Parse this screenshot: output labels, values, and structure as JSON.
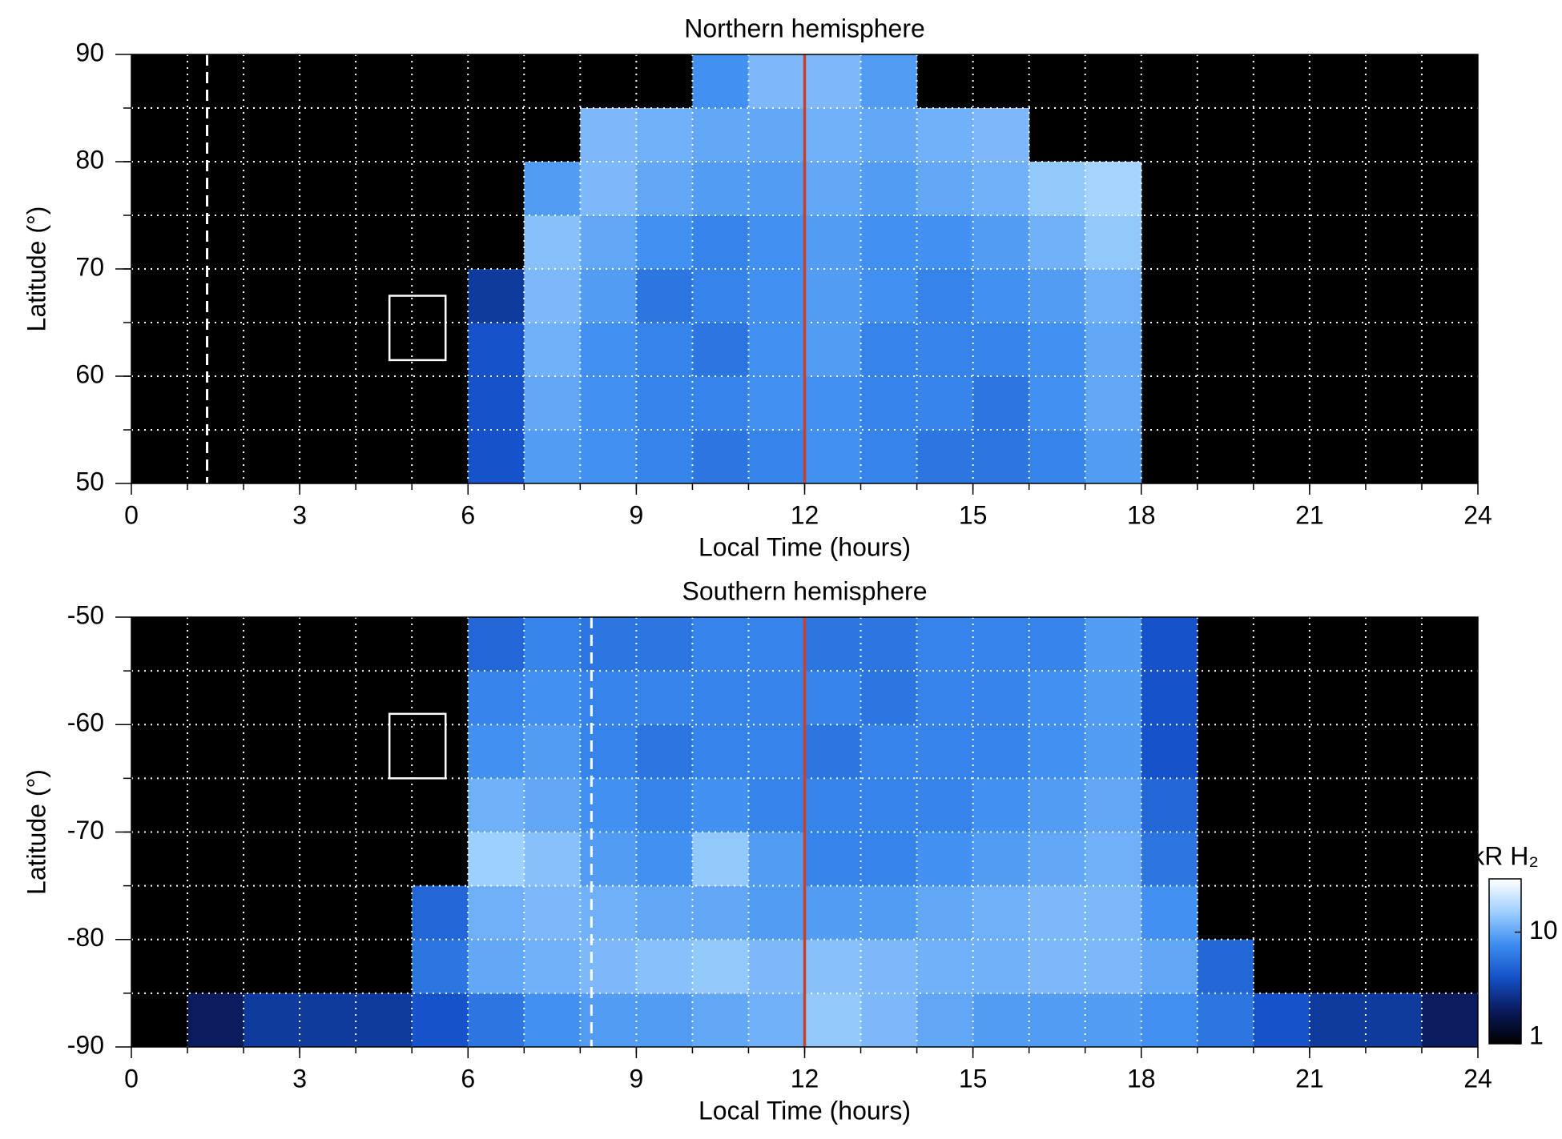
{
  "chart_data": [
    {
      "type": "heatmap",
      "title": "Northern hemisphere",
      "xlabel": "Local Time (hours)",
      "ylabel": "Latitude (°)",
      "x_edges": [
        0,
        1,
        2,
        3,
        4,
        5,
        6,
        7,
        8,
        9,
        10,
        11,
        12,
        13,
        14,
        15,
        16,
        17,
        18,
        19,
        20,
        21,
        22,
        23,
        24
      ],
      "y_edges": [
        50,
        55,
        60,
        65,
        70,
        75,
        80,
        85,
        90
      ],
      "values": [
        [
          null,
          null,
          null,
          null,
          null,
          null,
          4,
          9,
          8,
          7,
          6,
          7,
          8,
          7,
          6,
          6,
          7,
          9,
          null,
          null,
          null,
          null,
          null,
          null
        ],
        [
          null,
          null,
          null,
          null,
          null,
          null,
          4,
          10,
          8,
          7,
          7,
          8,
          8,
          7,
          7,
          6,
          8,
          10,
          null,
          null,
          null,
          null,
          null,
          null
        ],
        [
          null,
          null,
          null,
          null,
          null,
          null,
          4,
          11,
          8,
          7,
          6,
          8,
          9,
          7,
          7,
          7,
          8,
          10,
          null,
          null,
          null,
          null,
          null,
          null
        ],
        [
          null,
          null,
          null,
          null,
          null,
          null,
          3,
          12,
          9,
          6,
          7,
          8,
          9,
          8,
          7,
          8,
          9,
          11,
          null,
          null,
          null,
          null,
          null,
          null
        ],
        [
          null,
          null,
          null,
          null,
          null,
          null,
          null,
          13,
          10,
          8,
          7,
          8,
          9,
          8,
          8,
          9,
          11,
          14,
          null,
          null,
          null,
          null,
          null,
          null
        ],
        [
          null,
          null,
          null,
          null,
          null,
          null,
          null,
          9,
          12,
          10,
          9,
          9,
          10,
          9,
          10,
          11,
          14,
          16,
          null,
          null,
          null,
          null,
          null,
          null
        ],
        [
          null,
          null,
          null,
          null,
          null,
          null,
          null,
          null,
          12,
          11,
          10,
          10,
          11,
          10,
          11,
          12,
          null,
          null,
          null,
          null,
          null,
          null,
          null,
          null
        ],
        [
          null,
          null,
          null,
          null,
          null,
          null,
          null,
          null,
          null,
          null,
          8,
          12,
          12,
          9,
          null,
          null,
          null,
          null,
          null,
          null,
          null,
          null,
          null,
          null
        ]
      ],
      "xlim": [
        0,
        24
      ],
      "xticks": [
        0,
        3,
        6,
        9,
        12,
        15,
        18,
        21,
        24
      ],
      "ylim": [
        50,
        90
      ],
      "yticks": [
        50,
        60,
        70,
        80,
        90
      ],
      "xgrid": [
        1,
        2,
        3,
        4,
        5,
        6,
        7,
        8,
        9,
        10,
        11,
        12,
        13,
        14,
        15,
        16,
        17,
        18,
        19,
        20,
        21,
        22,
        23
      ],
      "ygrid": [
        55,
        60,
        65,
        70,
        75,
        80,
        85
      ],
      "grid": true,
      "box": {
        "x": [
          4.6,
          5.6
        ],
        "y": [
          61.5,
          67.5
        ]
      },
      "dashed_x": 1.35,
      "noon_x": 12,
      "noon_color": "#c8402a"
    },
    {
      "type": "heatmap",
      "title": "Southern hemisphere",
      "xlabel": "Local Time (hours)",
      "ylabel": "Latitude (°)",
      "x_edges": [
        0,
        1,
        2,
        3,
        4,
        5,
        6,
        7,
        8,
        9,
        10,
        11,
        12,
        13,
        14,
        15,
        16,
        17,
        18,
        19,
        20,
        21,
        22,
        23,
        24
      ],
      "y_edges": [
        -90,
        -85,
        -80,
        -75,
        -70,
        -65,
        -60,
        -55,
        -50
      ],
      "values": [
        [
          null,
          2,
          3,
          3,
          3,
          4,
          6,
          8,
          9,
          9,
          10,
          11,
          14,
          12,
          10,
          9,
          9,
          9,
          8,
          6,
          4,
          3,
          3,
          2
        ],
        [
          null,
          null,
          null,
          null,
          null,
          6,
          10,
          11,
          12,
          13,
          14,
          12,
          13,
          12,
          11,
          11,
          12,
          12,
          10,
          5,
          null,
          null,
          null,
          null
        ],
        [
          null,
          null,
          null,
          null,
          null,
          5,
          11,
          12,
          11,
          10,
          10,
          9,
          9,
          9,
          10,
          11,
          12,
          12,
          8,
          null,
          null,
          null,
          null,
          null
        ],
        [
          null,
          null,
          null,
          null,
          null,
          null,
          15,
          13,
          9,
          8,
          14,
          9,
          7,
          7,
          8,
          9,
          10,
          11,
          6,
          null,
          null,
          null,
          null,
          null
        ],
        [
          null,
          null,
          null,
          null,
          null,
          null,
          11,
          10,
          8,
          7,
          8,
          7,
          7,
          7,
          7,
          8,
          9,
          10,
          5,
          null,
          null,
          null,
          null,
          null
        ],
        [
          null,
          null,
          null,
          null,
          null,
          null,
          8,
          9,
          7,
          6,
          7,
          7,
          6,
          7,
          7,
          7,
          8,
          9,
          4,
          null,
          null,
          null,
          null,
          null
        ],
        [
          null,
          null,
          null,
          null,
          null,
          null,
          7,
          8,
          7,
          7,
          7,
          7,
          7,
          6,
          7,
          7,
          8,
          9,
          4,
          null,
          null,
          null,
          null,
          null
        ],
        [
          null,
          null,
          null,
          null,
          null,
          null,
          5,
          7,
          6,
          6,
          7,
          7,
          6,
          6,
          7,
          7,
          7,
          9,
          4,
          null,
          null,
          null,
          null,
          null
        ]
      ],
      "xlim": [
        0,
        24
      ],
      "xticks": [
        0,
        3,
        6,
        9,
        12,
        15,
        18,
        21,
        24
      ],
      "ylim": [
        -90,
        -50
      ],
      "yticks": [
        -90,
        -80,
        -70,
        -60,
        -50
      ],
      "xgrid": [
        1,
        2,
        3,
        4,
        5,
        6,
        7,
        8,
        9,
        10,
        11,
        12,
        13,
        14,
        15,
        16,
        17,
        18,
        19,
        20,
        21,
        22,
        23
      ],
      "ygrid": [
        -85,
        -80,
        -75,
        -70,
        -65,
        -60,
        -55
      ],
      "grid": true,
      "box": {
        "x": [
          4.6,
          5.6
        ],
        "y": [
          -65,
          -59
        ]
      },
      "dashed_x": 8.2,
      "noon_x": 12,
      "noon_color": "#c8402a",
      "colorbar": {
        "label": "kR H₂",
        "lim": [
          1,
          30
        ],
        "ticks": [
          1,
          10
        ],
        "scale": "log",
        "colormap": [
          "#000000",
          "#0a1a5c",
          "#1450c8",
          "#3c8cf0",
          "#9fd0ff",
          "#ffffff"
        ]
      }
    }
  ]
}
